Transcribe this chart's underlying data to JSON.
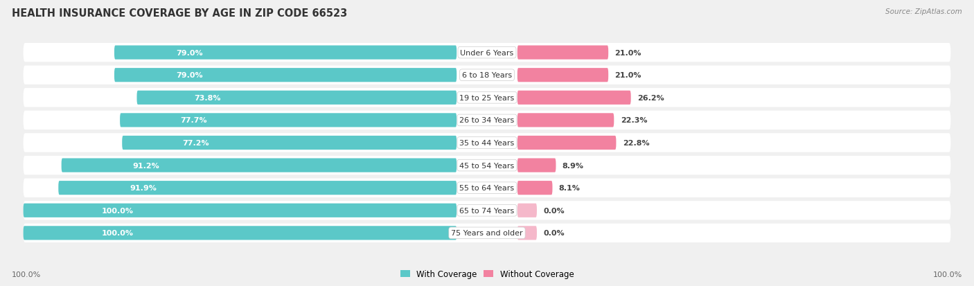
{
  "title": "HEALTH INSURANCE COVERAGE BY AGE IN ZIP CODE 66523",
  "source": "Source: ZipAtlas.com",
  "categories": [
    "Under 6 Years",
    "6 to 18 Years",
    "19 to 25 Years",
    "26 to 34 Years",
    "35 to 44 Years",
    "45 to 54 Years",
    "55 to 64 Years",
    "65 to 74 Years",
    "75 Years and older"
  ],
  "with_coverage": [
    79.0,
    79.0,
    73.8,
    77.7,
    77.2,
    91.2,
    91.9,
    100.0,
    100.0
  ],
  "without_coverage": [
    21.0,
    21.0,
    26.2,
    22.3,
    22.8,
    8.9,
    8.1,
    0.0,
    0.0
  ],
  "color_with": "#5BC8C8",
  "color_without": "#F282A0",
  "color_without_light": "#F5B8CA",
  "background_color": "#f0f0f0",
  "bar_background": "#e8e8e8",
  "row_bg": "#f8f8f8",
  "title_fontsize": 10.5,
  "label_fontsize": 8.0,
  "pct_fontsize": 8.0,
  "bar_height": 0.62,
  "source_fontsize": 7.5
}
